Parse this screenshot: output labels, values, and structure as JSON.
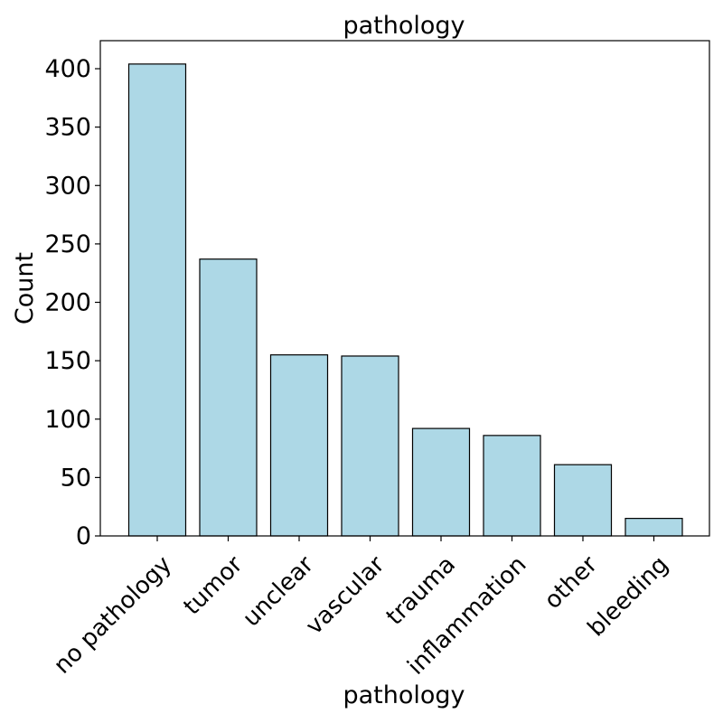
{
  "chart_data": {
    "type": "bar",
    "title": "pathology",
    "xlabel": "pathology",
    "ylabel": "Count",
    "categories": [
      "no pathology",
      "tumor",
      "unclear",
      "vascular",
      "trauma",
      "inflammation",
      "other",
      "bleeding"
    ],
    "values": [
      404,
      237,
      155,
      154,
      92,
      86,
      61,
      15
    ],
    "ylim": [
      0,
      424
    ],
    "yticks": [
      0,
      50,
      100,
      150,
      200,
      250,
      300,
      350,
      400
    ],
    "grid": false,
    "bar_color": "#add8e6",
    "edge_color": "#000000"
  }
}
